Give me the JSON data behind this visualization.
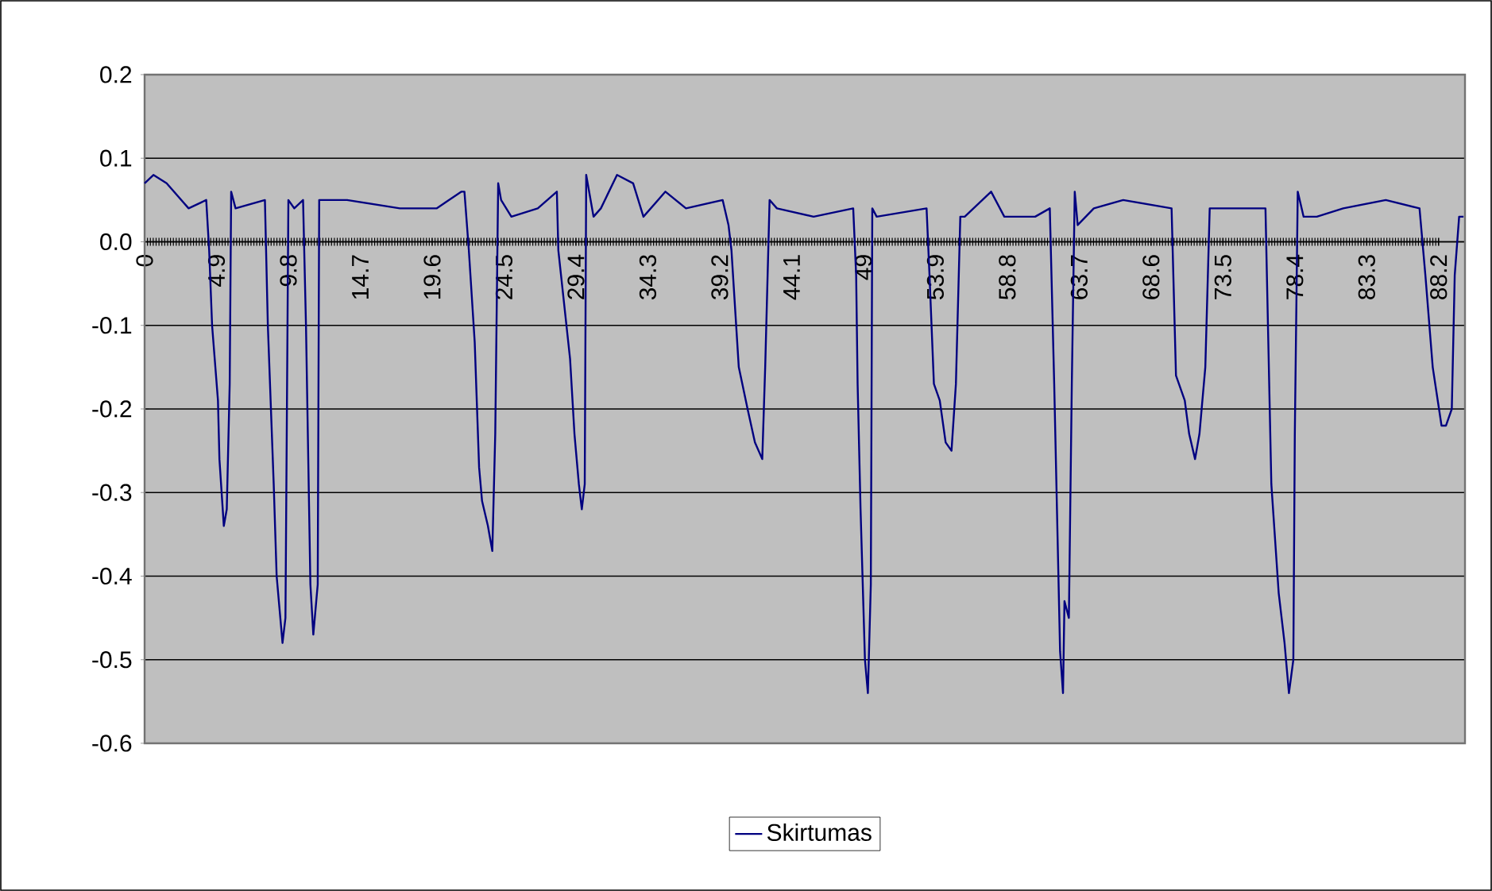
{
  "chart_data": {
    "type": "line",
    "x": [
      0,
      0.6,
      1.5,
      3.0,
      4.2,
      4.4,
      4.6,
      5.0,
      5.1,
      5.4,
      5.6,
      5.8,
      5.9,
      6.2,
      8.2,
      8.4,
      8.8,
      9.0,
      9.4,
      9.6,
      9.8,
      10.2,
      10.8,
      11.0,
      11.3,
      11.5,
      11.8,
      11.9,
      13.8,
      17.4,
      19.9,
      21.6,
      21.8,
      22.1,
      22.5,
      22.8,
      23.0,
      23.4,
      23.7,
      23.9,
      24.1,
      24.3,
      25.0,
      26.8,
      28.1,
      28.2,
      29.0,
      29.3,
      29.6,
      29.8,
      30.0,
      30.1,
      30.6,
      31.1,
      32.2,
      33.3,
      34.0,
      35.5,
      36.9,
      39.4,
      39.8,
      40.0,
      40.5,
      41.1,
      41.6,
      42.1,
      42.3,
      42.6,
      43.1,
      45.6,
      48.3,
      48.5,
      48.6,
      48.8,
      49.1,
      49.3,
      49.5,
      49.6,
      49.9,
      53.3,
      53.5,
      53.8,
      54.2,
      54.6,
      55.0,
      55.3,
      55.6,
      55.9,
      57.7,
      58.6,
      60.7,
      61.7,
      62.0,
      62.4,
      62.6,
      62.7,
      63.0,
      63.2,
      63.4,
      63.6,
      64.7,
      66.7,
      70.0,
      70.3,
      70.9,
      71.2,
      71.6,
      71.9,
      72.3,
      72.6,
      74.4,
      76.4,
      76.8,
      77.3,
      77.7,
      78.0,
      78.3,
      78.4,
      78.6,
      79.0,
      79.9,
      81.7,
      84.6,
      86.9,
      87.3,
      87.8,
      88.4,
      88.7,
      89.1,
      89.3,
      89.6,
      89.9
    ],
    "series": [
      {
        "name": "Skirtumas",
        "color": "#000080",
        "values": [
          0.07,
          0.08,
          0.07,
          0.04,
          0.05,
          -0.01,
          -0.1,
          -0.19,
          -0.26,
          -0.34,
          -0.32,
          -0.17,
          0.06,
          0.04,
          0.05,
          -0.1,
          -0.29,
          -0.4,
          -0.48,
          -0.45,
          0.05,
          0.04,
          0.05,
          -0.1,
          -0.41,
          -0.47,
          -0.41,
          0.05,
          0.05,
          0.04,
          0.04,
          0.06,
          0.06,
          -0.01,
          -0.12,
          -0.27,
          -0.31,
          -0.34,
          -0.37,
          -0.23,
          0.07,
          0.05,
          0.03,
          0.04,
          0.06,
          -0.01,
          -0.14,
          -0.23,
          -0.29,
          -0.32,
          -0.29,
          0.08,
          0.03,
          0.04,
          0.08,
          0.07,
          0.03,
          0.06,
          0.04,
          0.05,
          0.02,
          -0.01,
          -0.15,
          -0.2,
          -0.24,
          -0.26,
          -0.15,
          0.05,
          0.04,
          0.03,
          0.04,
          -0.04,
          -0.17,
          -0.32,
          -0.5,
          -0.54,
          -0.41,
          0.04,
          0.03,
          0.04,
          -0.04,
          -0.17,
          -0.19,
          -0.24,
          -0.25,
          -0.17,
          0.03,
          0.03,
          0.06,
          0.03,
          0.03,
          0.04,
          -0.17,
          -0.49,
          -0.54,
          -0.43,
          -0.45,
          -0.17,
          0.06,
          0.02,
          0.04,
          0.05,
          0.04,
          -0.16,
          -0.19,
          -0.23,
          -0.26,
          -0.23,
          -0.15,
          0.04,
          0.04,
          0.04,
          -0.29,
          -0.42,
          -0.48,
          -0.54,
          -0.5,
          -0.23,
          0.06,
          0.03,
          0.03,
          0.04,
          0.05,
          0.04,
          -0.04,
          -0.15,
          -0.22,
          -0.22,
          -0.2,
          -0.04,
          0.03,
          0.03
        ]
      }
    ],
    "xlim": [
      0,
      90
    ],
    "xticks": [
      0,
      4.9,
      9.8,
      14.7,
      19.6,
      24.5,
      29.4,
      34.3,
      39.2,
      44.1,
      49,
      53.9,
      58.8,
      63.7,
      68.6,
      73.5,
      78.4,
      83.3,
      88.2
    ],
    "ylim": [
      -0.6,
      0.2
    ],
    "yticks": [
      -0.6,
      -0.5,
      -0.4,
      -0.3,
      -0.2,
      -0.1,
      {
        "value": 0,
        "label": "0.0"
      },
      0.1,
      0.2
    ],
    "grid": "y",
    "legend": "bottom",
    "marker": "none",
    "line_style": "solid"
  }
}
